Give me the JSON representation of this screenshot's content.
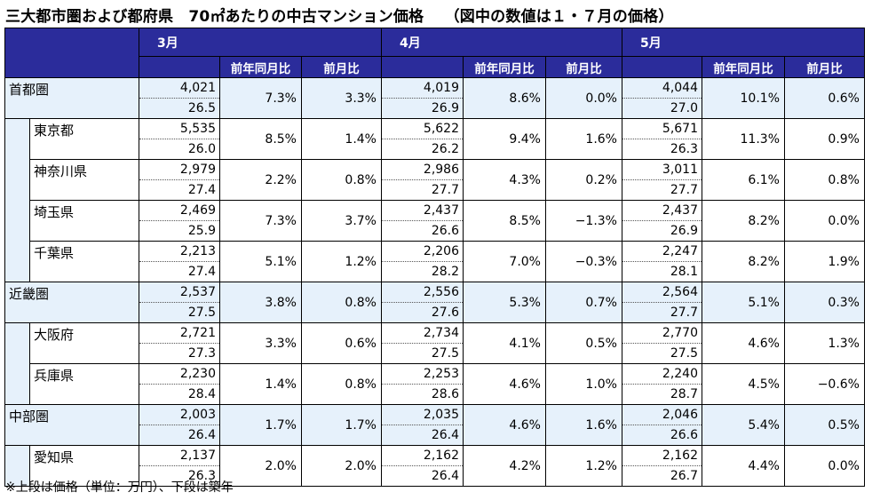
{
  "title": "三大都市圏および都府県　70㎡あたりの中古マンション価格　 （図中の数値は１・７月の価格）",
  "footnote": "※上段は価格（単位：万円）、下段は築年",
  "months": [
    {
      "label": "3月",
      "yoy_label": "前年同月比",
      "mom_label": "前月比"
    },
    {
      "label": "4月",
      "yoy_label": "前年同月比",
      "mom_label": "前月比"
    },
    {
      "label": "5月",
      "yoy_label": "前年同月比",
      "mom_label": "前月比"
    }
  ],
  "rows": [
    {
      "name": "首都圏",
      "level": "region",
      "cells": [
        {
          "price": "4,021",
          "age": "26.5",
          "yoy": "7.3%",
          "mom": "3.3%"
        },
        {
          "price": "4,019",
          "age": "26.9",
          "yoy": "8.6%",
          "mom": "0.0%"
        },
        {
          "price": "4,044",
          "age": "27.0",
          "yoy": "10.1%",
          "mom": "0.6%"
        }
      ]
    },
    {
      "name": "東京都",
      "level": "pref",
      "cells": [
        {
          "price": "5,535",
          "age": "26.0",
          "yoy": "8.5%",
          "mom": "1.4%"
        },
        {
          "price": "5,622",
          "age": "26.2",
          "yoy": "9.4%",
          "mom": "1.6%"
        },
        {
          "price": "5,671",
          "age": "26.3",
          "yoy": "11.3%",
          "mom": "0.9%"
        }
      ]
    },
    {
      "name": "神奈川県",
      "level": "pref",
      "cells": [
        {
          "price": "2,979",
          "age": "27.4",
          "yoy": "2.2%",
          "mom": "0.8%"
        },
        {
          "price": "2,986",
          "age": "27.7",
          "yoy": "4.3%",
          "mom": "0.2%"
        },
        {
          "price": "3,011",
          "age": "27.7",
          "yoy": "6.1%",
          "mom": "0.8%"
        }
      ]
    },
    {
      "name": "埼玉県",
      "level": "pref",
      "cells": [
        {
          "price": "2,469",
          "age": "25.9",
          "yoy": "7.3%",
          "mom": "3.7%"
        },
        {
          "price": "2,437",
          "age": "26.6",
          "yoy": "8.5%",
          "mom": "−1.3%"
        },
        {
          "price": "2,437",
          "age": "26.9",
          "yoy": "8.2%",
          "mom": "0.0%"
        }
      ]
    },
    {
      "name": "千葉県",
      "level": "pref",
      "cells": [
        {
          "price": "2,213",
          "age": "27.4",
          "yoy": "5.1%",
          "mom": "1.2%"
        },
        {
          "price": "2,206",
          "age": "28.2",
          "yoy": "7.0%",
          "mom": "−0.3%"
        },
        {
          "price": "2,247",
          "age": "28.1",
          "yoy": "8.2%",
          "mom": "1.9%"
        }
      ]
    },
    {
      "name": "近畿圏",
      "level": "region",
      "cells": [
        {
          "price": "2,537",
          "age": "27.5",
          "yoy": "3.8%",
          "mom": "0.8%"
        },
        {
          "price": "2,556",
          "age": "27.6",
          "yoy": "5.3%",
          "mom": "0.7%"
        },
        {
          "price": "2,564",
          "age": "27.7",
          "yoy": "5.1%",
          "mom": "0.3%"
        }
      ]
    },
    {
      "name": "大阪府",
      "level": "pref",
      "cells": [
        {
          "price": "2,721",
          "age": "27.3",
          "yoy": "3.3%",
          "mom": "0.6%"
        },
        {
          "price": "2,734",
          "age": "27.5",
          "yoy": "4.1%",
          "mom": "0.5%"
        },
        {
          "price": "2,770",
          "age": "27.5",
          "yoy": "4.6%",
          "mom": "1.3%"
        }
      ]
    },
    {
      "name": "兵庫県",
      "level": "pref",
      "cells": [
        {
          "price": "2,230",
          "age": "28.4",
          "yoy": "1.4%",
          "mom": "0.8%"
        },
        {
          "price": "2,253",
          "age": "28.6",
          "yoy": "4.6%",
          "mom": "1.0%"
        },
        {
          "price": "2,240",
          "age": "28.7",
          "yoy": "4.5%",
          "mom": "−0.6%"
        }
      ]
    },
    {
      "name": "中部圏",
      "level": "region",
      "cells": [
        {
          "price": "2,003",
          "age": "26.4",
          "yoy": "1.7%",
          "mom": "1.7%"
        },
        {
          "price": "2,035",
          "age": "26.4",
          "yoy": "4.6%",
          "mom": "1.6%"
        },
        {
          "price": "2,046",
          "age": "26.6",
          "yoy": "5.4%",
          "mom": "0.5%"
        }
      ]
    },
    {
      "name": "愛知県",
      "level": "pref",
      "cells": [
        {
          "price": "2,137",
          "age": "26.3",
          "yoy": "2.0%",
          "mom": "2.0%"
        },
        {
          "price": "2,162",
          "age": "26.4",
          "yoy": "4.2%",
          "mom": "1.2%"
        },
        {
          "price": "2,162",
          "age": "26.7",
          "yoy": "4.4%",
          "mom": "0.0%"
        }
      ]
    }
  ],
  "colors": {
    "header_bg": "#2b2c9b",
    "header_text": "#ffffff",
    "highlight_bg": "#e6f1fb"
  }
}
